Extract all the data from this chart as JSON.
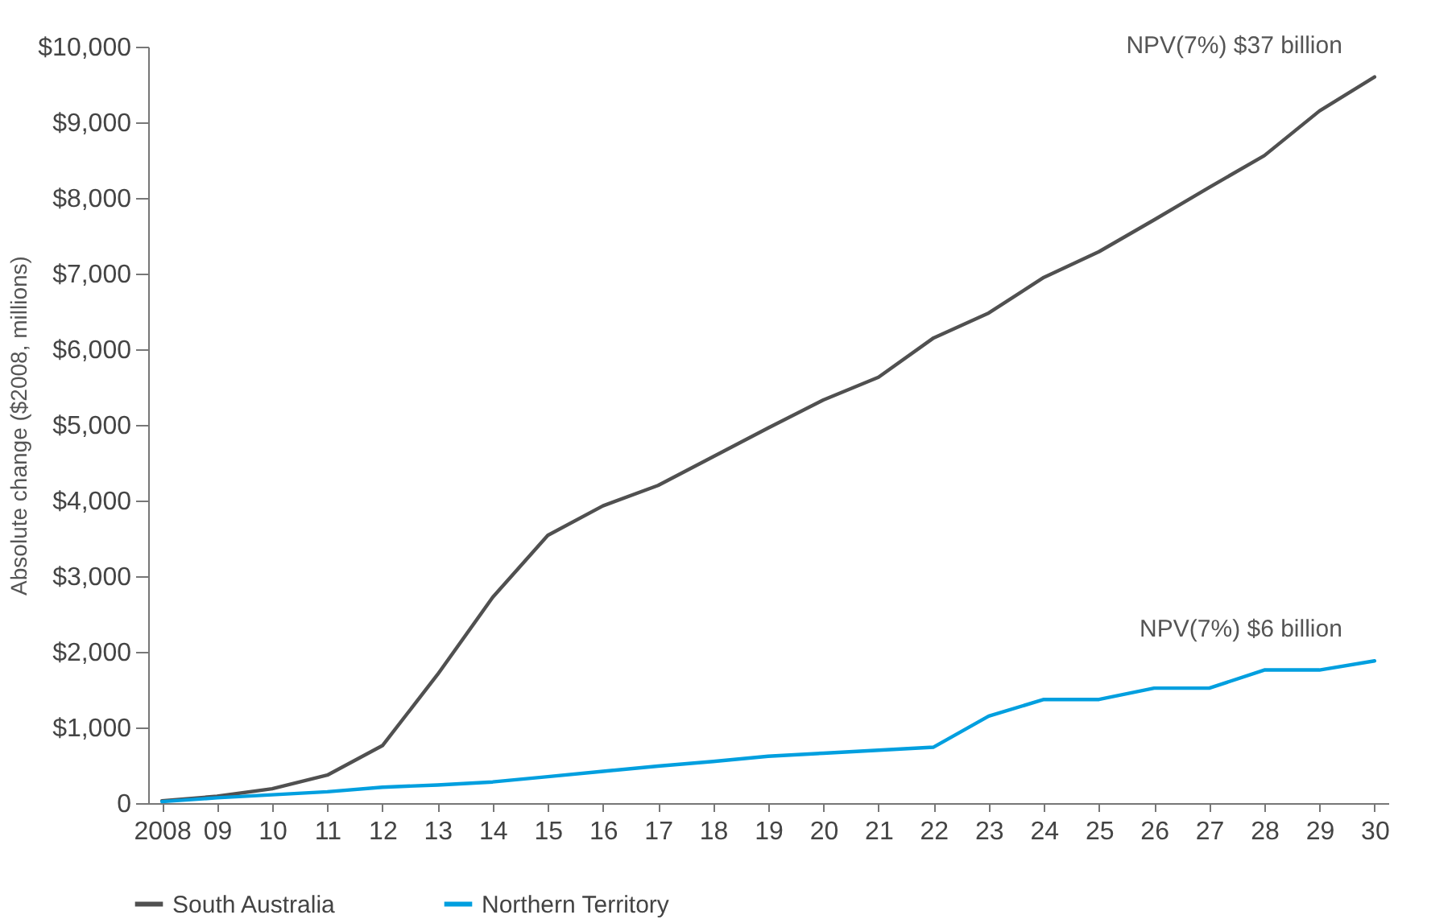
{
  "chart_data": {
    "type": "line",
    "ylabel": "Absolute change ($2008, millions)",
    "categories": [
      "2008",
      "09",
      "10",
      "11",
      "12",
      "13",
      "14",
      "15",
      "16",
      "17",
      "18",
      "19",
      "20",
      "21",
      "22",
      "23",
      "24",
      "25",
      "26",
      "27",
      "28",
      "29",
      "30"
    ],
    "series": [
      {
        "name": "South Australia",
        "color": "#505050",
        "values": [
          30,
          90,
          190,
          370,
          760,
          1700,
          2720,
          3540,
          3930,
          4200,
          4580,
          4960,
          5330,
          5630,
          6150,
          6480,
          6950,
          7290,
          7710,
          8140,
          8560,
          9150,
          9600
        ]
      },
      {
        "name": "Northern Territory",
        "color": "#009fdf",
        "values": [
          20,
          70,
          110,
          150,
          210,
          240,
          280,
          350,
          420,
          490,
          550,
          620,
          660,
          700,
          740,
          1150,
          1370,
          1370,
          1520,
          1520,
          1760,
          1760,
          1880
        ]
      }
    ],
    "ylim": [
      0,
      10000
    ],
    "yticks": [
      {
        "value": 0,
        "label": "0"
      },
      {
        "value": 1000,
        "label": "$1,000"
      },
      {
        "value": 2000,
        "label": "$2,000"
      },
      {
        "value": 3000,
        "label": "$3,000"
      },
      {
        "value": 4000,
        "label": "$4,000"
      },
      {
        "value": 5000,
        "label": "$5,000"
      },
      {
        "value": 6000,
        "label": "$6,000"
      },
      {
        "value": 7000,
        "label": "$7,000"
      },
      {
        "value": 8000,
        "label": "$8,000"
      },
      {
        "value": 9000,
        "label": "$9,000"
      },
      {
        "value": 10000,
        "label": "$10,000"
      }
    ],
    "annotations": [
      {
        "text": "NPV(7%) $37 billion",
        "x": "30",
        "y": 9600
      },
      {
        "text": "NPV(7%) $6 billion",
        "x": "30",
        "y": 1880
      }
    ],
    "grid": false,
    "legend": "bottom left",
    "marker": "none",
    "line_style": "solid"
  }
}
